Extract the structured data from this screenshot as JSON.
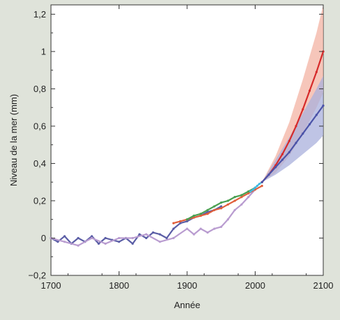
{
  "chart_data": {
    "type": "line",
    "title": "",
    "xlabel": "Année",
    "ylabel": "Niveau de la mer (mm)",
    "xlim": [
      1700,
      2100
    ],
    "ylim": [
      -0.2,
      1.25
    ],
    "x_ticks": [
      1700,
      1800,
      1900,
      2000,
      2100
    ],
    "x_tick_labels": [
      "1700",
      "1800",
      "1900",
      "2000",
      "2100"
    ],
    "y_ticks": [
      -0.2,
      0,
      0.2,
      0.4,
      0.6,
      0.8,
      1.0,
      1.2
    ],
    "y_tick_labels": [
      "−0,2",
      "0",
      "0,2",
      "0,4",
      "0,6",
      "0,8",
      "1",
      "1,2"
    ],
    "grid": false,
    "legend": "none",
    "series": [
      {
        "color": "#5b5ea6",
        "x": [
          1700,
          1710,
          1720,
          1730,
          1740,
          1750,
          1760,
          1770,
          1780,
          1790,
          1800,
          1810,
          1820,
          1830,
          1840,
          1850,
          1860,
          1870,
          1880,
          1890,
          1900,
          1910,
          1920,
          1930,
          1940,
          1950
        ],
        "y": [
          0.0,
          -0.02,
          0.01,
          -0.03,
          0.0,
          -0.02,
          0.01,
          -0.03,
          0.0,
          -0.01,
          -0.02,
          0.0,
          -0.03,
          0.02,
          0.0,
          0.03,
          0.02,
          0.0,
          0.05,
          0.08,
          0.09,
          0.11,
          0.12,
          0.14,
          0.15,
          0.17
        ]
      },
      {
        "color": "#b99cd0",
        "x": [
          1700,
          1720,
          1740,
          1760,
          1780,
          1800,
          1820,
          1840,
          1860,
          1880,
          1900,
          1910,
          1920,
          1930,
          1940,
          1950,
          1960,
          1970,
          1980,
          1990,
          2000
        ],
        "y": [
          0.0,
          -0.02,
          -0.04,
          0.0,
          -0.03,
          0.0,
          0.0,
          0.02,
          -0.02,
          0.0,
          0.05,
          0.02,
          0.05,
          0.03,
          0.05,
          0.06,
          0.1,
          0.15,
          0.18,
          0.22,
          0.26
        ]
      },
      {
        "color": "#e15f3b",
        "x": [
          1880,
          1890,
          1900,
          1910,
          1920,
          1930,
          1940,
          1950,
          1960,
          1970,
          1980,
          1990,
          2000,
          2010
        ],
        "y": [
          0.08,
          0.09,
          0.1,
          0.11,
          0.12,
          0.13,
          0.15,
          0.16,
          0.18,
          0.2,
          0.22,
          0.24,
          0.26,
          0.28
        ]
      },
      {
        "color": "#4aa052",
        "x": [
          1900,
          1910,
          1920,
          1930,
          1940,
          1950,
          1960,
          1970,
          1980,
          1990,
          2000
        ],
        "y": [
          0.1,
          0.12,
          0.13,
          0.15,
          0.17,
          0.19,
          0.2,
          0.22,
          0.23,
          0.25,
          0.27
        ]
      },
      {
        "color": "#40b8e0",
        "x": [
          1993,
          1997,
          2000,
          2003,
          2006,
          2010
        ],
        "y": [
          0.25,
          0.26,
          0.27,
          0.28,
          0.29,
          0.3
        ]
      },
      {
        "color": "#d62a2a",
        "x": [
          2010,
          2020,
          2030,
          2040,
          2050,
          2060,
          2070,
          2080,
          2090,
          2100
        ],
        "y": [
          0.3,
          0.34,
          0.39,
          0.45,
          0.52,
          0.6,
          0.69,
          0.79,
          0.89,
          1.0
        ]
      },
      {
        "color": "#4b53a8",
        "x": [
          2010,
          2020,
          2030,
          2040,
          2050,
          2060,
          2070,
          2080,
          2090,
          2100
        ],
        "y": [
          0.3,
          0.34,
          0.38,
          0.42,
          0.46,
          0.51,
          0.56,
          0.61,
          0.66,
          0.71
        ]
      }
    ],
    "bands": [
      {
        "color": "#f3b3a3",
        "x": [
          2010,
          2030,
          2050,
          2070,
          2090,
          2100
        ],
        "lower": [
          0.3,
          0.35,
          0.44,
          0.56,
          0.7,
          0.78
        ],
        "upper": [
          0.3,
          0.44,
          0.62,
          0.85,
          1.1,
          1.25
        ]
      },
      {
        "color": "#aab0dc",
        "x": [
          2010,
          2030,
          2050,
          2070,
          2090,
          2100
        ],
        "lower": [
          0.3,
          0.34,
          0.39,
          0.45,
          0.51,
          0.55
        ],
        "upper": [
          0.3,
          0.42,
          0.54,
          0.67,
          0.8,
          0.87
        ]
      }
    ]
  }
}
